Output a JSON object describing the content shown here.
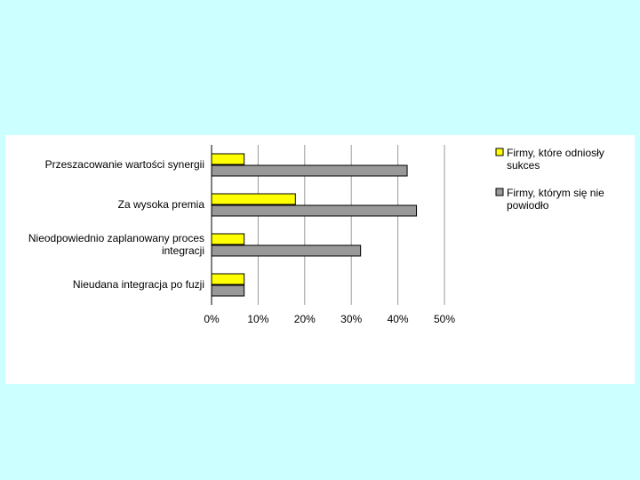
{
  "chart_data": {
    "type": "barh",
    "categories": [
      "Przeszacowanie wartości synergii",
      "Za wysoka premia",
      "Nieodpowiednio zaplanowany proces integracji",
      "Nieudana integracja po fuzji"
    ],
    "series": [
      {
        "name": "Firmy, które odniosły sukces",
        "color": "#ffff00",
        "values": [
          7,
          18,
          7,
          7
        ]
      },
      {
        "name": "Firmy, którym się nie powiodło",
        "color": "#999999",
        "values": [
          42,
          44,
          32,
          7
        ]
      }
    ],
    "xlim": [
      0,
      50
    ],
    "xticks": [
      {
        "value": 0,
        "label": "0%"
      },
      {
        "value": 10,
        "label": "10%"
      },
      {
        "value": 20,
        "label": "20%"
      },
      {
        "value": 30,
        "label": "30%"
      },
      {
        "value": 40,
        "label": "40%"
      },
      {
        "value": 50,
        "label": "50%"
      }
    ],
    "grid": true,
    "legend": "right"
  }
}
